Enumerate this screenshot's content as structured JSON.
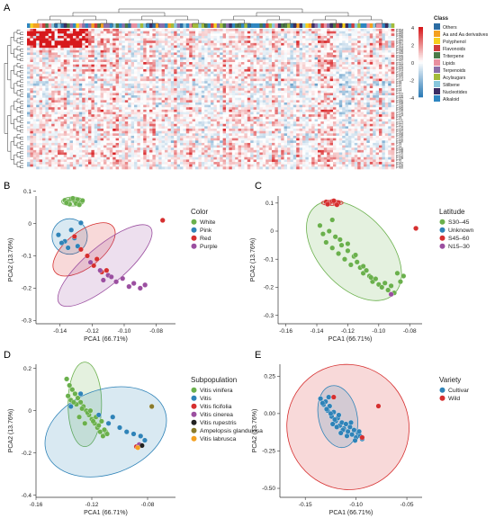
{
  "panel_labels": [
    "A",
    "B",
    "C",
    "D",
    "E"
  ],
  "chart_data": [
    {
      "panel": "A",
      "type": "heatmap",
      "legend_title": "Class",
      "color_scale_ticks": [
        "4",
        "2",
        "0",
        "-2",
        "-4"
      ],
      "class_legend": [
        {
          "label": "Others",
          "color": "#2b6ca3"
        },
        {
          "label": "Aa and Aa derivatives",
          "color": "#f4a01f"
        },
        {
          "label": "Polyphenol",
          "color": "#f6d01e"
        },
        {
          "label": "Flavonoids",
          "color": "#cf3d3d"
        },
        {
          "label": "Triterpene",
          "color": "#4b7a47"
        },
        {
          "label": "Lipids",
          "color": "#e88f9f"
        },
        {
          "label": "Terpenoids",
          "color": "#8a6ea8"
        },
        {
          "label": "Acylsugars",
          "color": "#a3bb3a"
        },
        {
          "label": "Stilbene",
          "color": "#88c7dd"
        },
        {
          "label": "Nucleotides",
          "color": "#3b2c63"
        },
        {
          "label": "Alkaloid",
          "color": "#2e86c1"
        }
      ],
      "row_labels": [
        "PT54",
        "PT55",
        "PT50",
        "PT56",
        "PT52",
        "PT57",
        "PT51",
        "PT53",
        "PT33",
        "PT36",
        "PT44",
        "PT49",
        "PT43",
        "PT42",
        "PT31",
        "PT32",
        "PT24",
        "PT23",
        "PT19",
        "PT26",
        "PT21",
        "PT13",
        "PT8",
        "PT2",
        "PT1",
        "PT3",
        "PT7",
        "PT22",
        "PT35",
        "PT37",
        "PT46",
        "PT58",
        "PT29",
        "PT45",
        "PT39",
        "PT15",
        "PT14",
        "PT9",
        "PT11",
        "PT17",
        "PT27",
        "PT18",
        "PT34",
        "PT41",
        "PT48",
        "PT40",
        "PT20",
        "PT30",
        "PT5",
        "PT4",
        "PT16",
        "PT38",
        "PT10",
        "PT12",
        "PT28",
        "PT6",
        "PT47",
        "PT25",
        "PT60"
      ],
      "colors": {
        "high": "#d7191c",
        "mid": "#ffffff",
        "low": "#2c7bb6"
      }
    },
    {
      "panel": "B",
      "type": "scatter",
      "xlabel": "PCA1 (66.71%)",
      "ylabel": "PCA2 (13.76%)",
      "xlim": [
        -0.155,
        -0.068
      ],
      "ylim": [
        -0.31,
        0.085
      ],
      "xticks": [
        -0.14,
        -0.12,
        -0.1,
        -0.08
      ],
      "xtick_labels": [
        "-0.14",
        "-0.12",
        "-0.10",
        "-0.08"
      ],
      "yticks": [
        -0.3,
        -0.2,
        -0.1,
        0,
        0.1
      ],
      "ytick_labels": [
        "-0.3",
        "-0.2",
        "-0.1",
        "0",
        "0.1"
      ],
      "legend_title": "Color",
      "legend_position": "right",
      "series": [
        {
          "name": "White",
          "color": "#6ab04c",
          "x": [
            -0.137,
            -0.135,
            -0.133,
            -0.131,
            -0.129,
            -0.127,
            -0.134,
            -0.13,
            -0.126,
            -0.132,
            -0.128,
            -0.136
          ],
          "y": [
            0.072,
            0.068,
            0.076,
            0.07,
            0.074,
            0.066,
            0.06,
            0.062,
            0.071,
            0.078,
            0.058,
            0.064
          ]
        },
        {
          "name": "Pink",
          "color": "#2f83b8",
          "x": [
            -0.141,
            -0.137,
            -0.133,
            -0.129,
            -0.127,
            -0.135,
            -0.131,
            -0.139
          ],
          "y": [
            -0.035,
            -0.055,
            -0.02,
            -0.07,
            0.002,
            -0.075,
            -0.045,
            -0.06
          ]
        },
        {
          "name": "Red",
          "color": "#d62f2f",
          "x": [
            -0.131,
            -0.127,
            -0.123,
            -0.119,
            -0.117,
            -0.114,
            -0.111,
            -0.076
          ],
          "y": [
            -0.04,
            -0.08,
            -0.1,
            -0.13,
            -0.11,
            -0.15,
            -0.145,
            0.01
          ]
        },
        {
          "name": "Purple",
          "color": "#9b4fa0",
          "x": [
            -0.121,
            -0.115,
            -0.11,
            -0.105,
            -0.101,
            -0.097,
            -0.094,
            -0.09,
            -0.087,
            -0.108,
            -0.113
          ],
          "y": [
            -0.12,
            -0.145,
            -0.16,
            -0.18,
            -0.17,
            -0.195,
            -0.185,
            -0.2,
            -0.19,
            -0.165,
            -0.175
          ]
        }
      ],
      "ellipses": [
        {
          "color": "#6ab04c",
          "cx": -0.132,
          "cy": 0.068,
          "rx": 0.007,
          "ry": 0.014,
          "angle": 0
        },
        {
          "color": "#2f83b8",
          "cx": -0.134,
          "cy": -0.04,
          "rx": 0.011,
          "ry": 0.055,
          "angle": 0
        },
        {
          "color": "#d62f2f",
          "cx": -0.125,
          "cy": -0.08,
          "rx": 0.023,
          "ry": 0.055,
          "angle": -38
        },
        {
          "color": "#9b4fa0",
          "cx": -0.112,
          "cy": -0.13,
          "rx": 0.037,
          "ry": 0.06,
          "angle": -40
        }
      ]
    },
    {
      "panel": "C",
      "type": "scatter",
      "xlabel": "PCA1 (66.71%)",
      "ylabel": "PCA2 (13.76%)",
      "xlim": [
        -0.165,
        -0.072
      ],
      "ylim": [
        -0.33,
        0.125
      ],
      "xticks": [
        -0.16,
        -0.14,
        -0.12,
        -0.1,
        -0.08
      ],
      "xtick_labels": [
        "-0.16",
        "-0.14",
        "-0.12",
        "-0.10",
        "-0.08"
      ],
      "yticks": [
        -0.3,
        -0.2,
        -0.1,
        0,
        0.1
      ],
      "ytick_labels": [
        "-0.3",
        "-0.2",
        "-0.1",
        "0",
        "0.1"
      ],
      "legend_title": "Latitude",
      "legend_position": "right",
      "series": [
        {
          "name": "S30–45",
          "color": "#6ab04c",
          "x": [
            -0.138,
            -0.136,
            -0.134,
            -0.132,
            -0.13,
            -0.128,
            -0.126,
            -0.124,
            -0.122,
            -0.12,
            -0.118,
            -0.116,
            -0.114,
            -0.112,
            -0.11,
            -0.108,
            -0.106,
            -0.104,
            -0.102,
            -0.1,
            -0.098,
            -0.096,
            -0.094,
            -0.092,
            -0.09,
            -0.088,
            -0.086,
            -0.084,
            -0.13,
            -0.125,
            -0.12,
            -0.115,
            -0.11,
            -0.105
          ],
          "y": [
            0.02,
            -0.01,
            -0.04,
            0.0,
            -0.06,
            -0.02,
            -0.08,
            -0.05,
            -0.1,
            -0.07,
            -0.12,
            -0.09,
            -0.11,
            -0.13,
            -0.15,
            -0.14,
            -0.16,
            -0.18,
            -0.17,
            -0.19,
            -0.2,
            -0.185,
            -0.21,
            -0.195,
            -0.22,
            -0.15,
            -0.18,
            -0.16,
            0.04,
            -0.03,
            -0.045,
            -0.085,
            -0.125,
            -0.165
          ]
        },
        {
          "name": "Unknown",
          "color": "#2f83b8",
          "x": [
            -0.128
          ],
          "y": [
            0.1
          ]
        },
        {
          "name": "S45–60",
          "color": "#d62f2f",
          "x": [
            -0.134,
            -0.132,
            -0.13,
            -0.128,
            -0.126,
            -0.133,
            -0.129,
            -0.127,
            -0.076
          ],
          "y": [
            0.104,
            0.1,
            0.106,
            0.098,
            0.102,
            0.096,
            0.108,
            0.094,
            0.01
          ]
        },
        {
          "name": "N15–30",
          "color": "#9b4fa0",
          "x": [
            -0.092
          ],
          "y": [
            -0.225
          ]
        }
      ],
      "ellipses": [
        {
          "color": "#6ab04c",
          "cx": -0.116,
          "cy": -0.07,
          "rx": 0.023,
          "ry": 0.21,
          "angle": -42
        },
        {
          "color": "#d62f2f",
          "cx": -0.13,
          "cy": 0.101,
          "rx": 0.007,
          "ry": 0.01,
          "angle": 0
        }
      ]
    },
    {
      "panel": "D",
      "type": "scatter",
      "xlabel": "PCA1 (66.71%)",
      "ylabel": "PCA2 (13.76%)",
      "xlim": [
        -0.16,
        -0.06
      ],
      "ylim": [
        -0.41,
        0.22
      ],
      "xticks": [
        -0.16,
        -0.12,
        -0.08
      ],
      "xtick_labels": [
        "-0.16",
        "-0.12",
        "-0.08"
      ],
      "yticks": [
        -0.4,
        -0.2,
        0,
        0.2
      ],
      "ytick_labels": [
        "-0.4",
        "-0.2",
        "0",
        "0.2"
      ],
      "legend_title": "Subpopulation",
      "legend_position": "right",
      "series": [
        {
          "name": "Vitis vinifera",
          "color": "#6ab04c",
          "x": [
            -0.138,
            -0.136,
            -0.134,
            -0.132,
            -0.13,
            -0.128,
            -0.126,
            -0.124,
            -0.122,
            -0.12,
            -0.118,
            -0.116,
            -0.114,
            -0.112,
            -0.11,
            -0.135,
            -0.131,
            -0.127,
            -0.123,
            -0.119,
            -0.115,
            -0.111,
            -0.137,
            -0.133,
            -0.129,
            -0.125,
            -0.121,
            -0.117,
            -0.113,
            -0.109
          ],
          "y": [
            0.15,
            0.12,
            0.1,
            0.08,
            0.06,
            0.04,
            0.02,
            0.0,
            -0.02,
            -0.04,
            -0.06,
            -0.08,
            -0.1,
            -0.12,
            -0.1,
            0.05,
            0.03,
            0.01,
            -0.01,
            -0.05,
            -0.07,
            -0.09,
            0.07,
            0.04,
            -0.03,
            -0.06,
            0.0,
            -0.03,
            -0.05,
            -0.11
          ]
        },
        {
          "name": "Vitis",
          "color": "#2f83b8",
          "x": [
            -0.135,
            -0.128,
            -0.115,
            -0.108,
            -0.1,
            -0.095,
            -0.09,
            -0.085,
            -0.082,
            -0.105
          ],
          "y": [
            0.02,
            0.08,
            -0.02,
            -0.06,
            -0.08,
            -0.1,
            -0.11,
            -0.12,
            -0.14,
            -0.03
          ]
        },
        {
          "name": "Vitis ficifolia",
          "color": "#d62f2f",
          "x": [
            -0.088
          ],
          "y": [
            -0.17
          ]
        },
        {
          "name": "Vitis cinerea",
          "color": "#9b4fa0",
          "x": [
            -0.086
          ],
          "y": [
            -0.16
          ]
        },
        {
          "name": "Vitis rupestris",
          "color": "#222222",
          "x": [
            -0.084
          ],
          "y": [
            -0.165
          ]
        },
        {
          "name": "Ampelopsis glandulosa",
          "color": "#8a7a2a",
          "x": [
            -0.077
          ],
          "y": [
            0.02
          ]
        },
        {
          "name": "Vitis labrusca",
          "color": "#f4a01f",
          "x": [
            -0.087
          ],
          "y": [
            -0.175
          ]
        }
      ],
      "ellipses": [
        {
          "color": "#6ab04c",
          "cx": -0.125,
          "cy": 0.03,
          "rx": 0.012,
          "ry": 0.2,
          "angle": 0
        },
        {
          "color": "#2f83b8",
          "cx": -0.11,
          "cy": -0.1,
          "rx": 0.045,
          "ry": 0.2,
          "angle": -20
        }
      ]
    },
    {
      "panel": "E",
      "type": "scatter",
      "xlabel": "PCA1 (66.71%)",
      "ylabel": "PCA2 (13.76%)",
      "xlim": [
        -0.175,
        -0.035
      ],
      "ylim": [
        -0.56,
        0.33
      ],
      "xticks": [
        -0.15,
        -0.1,
        -0.05
      ],
      "xtick_labels": [
        "-0.15",
        "-0.10",
        "-0.05"
      ],
      "yticks": [
        -0.5,
        -0.25,
        0.0,
        0.25
      ],
      "ytick_labels": [
        "-0.50",
        "-0.25",
        "0.00",
        "0.25"
      ],
      "legend_title": "Variety",
      "legend_position": "right",
      "series": [
        {
          "name": "Cultivar",
          "color": "#2f83b8",
          "x": [
            -0.135,
            -0.132,
            -0.13,
            -0.128,
            -0.126,
            -0.124,
            -0.122,
            -0.12,
            -0.118,
            -0.116,
            -0.114,
            -0.112,
            -0.11,
            -0.108,
            -0.106,
            -0.104,
            -0.102,
            -0.1,
            -0.098,
            -0.096,
            -0.094,
            -0.129,
            -0.125,
            -0.121,
            -0.117,
            -0.113,
            -0.109,
            -0.105,
            -0.101,
            -0.097,
            -0.133,
            -0.127,
            -0.123,
            -0.119,
            -0.115
          ],
          "y": [
            0.1,
            0.06,
            0.08,
            0.02,
            0.05,
            -0.02,
            0.01,
            -0.05,
            -0.03,
            -0.08,
            -0.06,
            -0.1,
            -0.07,
            -0.12,
            -0.09,
            -0.14,
            -0.11,
            -0.16,
            -0.13,
            -0.15,
            -0.17,
            0.03,
            0.0,
            -0.04,
            -0.01,
            -0.11,
            -0.15,
            -0.06,
            -0.18,
            -0.12,
            0.07,
            0.11,
            -0.07,
            -0.09,
            -0.13
          ]
        },
        {
          "name": "Wild",
          "color": "#d62f2f",
          "x": [
            -0.122,
            -0.078,
            -0.094
          ],
          "y": [
            0.11,
            0.05,
            -0.16
          ]
        }
      ],
      "ellipses": [
        {
          "color": "#d62f2f",
          "cx": -0.108,
          "cy": -0.09,
          "rx": 0.06,
          "ry": 0.42,
          "angle": -18
        },
        {
          "color": "#2f83b8",
          "cx": -0.118,
          "cy": -0.02,
          "rx": 0.019,
          "ry": 0.21,
          "angle": -12
        }
      ]
    }
  ]
}
